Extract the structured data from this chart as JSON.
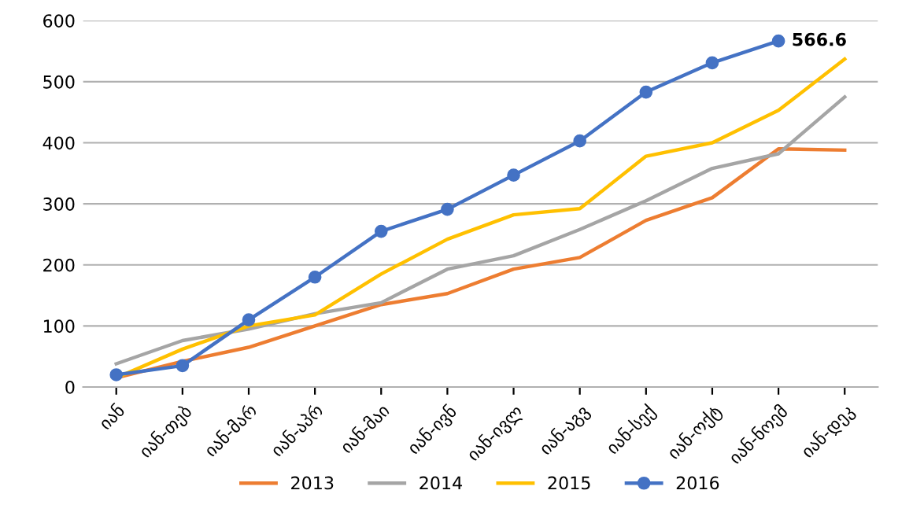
{
  "chart_data": {
    "type": "line",
    "categories": [
      "იან",
      "იან-თებ",
      "იან-მარ",
      "იან-აპრ",
      "იან-მაი",
      "იან-ივნ",
      "იან-ივლ",
      "იან-აგვ",
      "იან-სექ",
      "იან-ოქტ",
      "იან-ნოემ",
      "იან-დეკ"
    ],
    "series": [
      {
        "name": "2013",
        "color": "#ed7d31",
        "marker": "none",
        "values": [
          15,
          42,
          65,
          100,
          135,
          153,
          193,
          212,
          273,
          310,
          390,
          388
        ]
      },
      {
        "name": "2014",
        "color": "#a5a5a5",
        "marker": "none",
        "values": [
          38,
          76,
          95,
          120,
          138,
          193,
          215,
          258,
          305,
          358,
          382,
          475
        ]
      },
      {
        "name": "2015",
        "color": "#ffc000",
        "marker": "none",
        "values": [
          15,
          62,
          100,
          118,
          185,
          242,
          282,
          292,
          378,
          400,
          453,
          537
        ]
      },
      {
        "name": "2016",
        "color": "#4472c4",
        "marker": "circle",
        "values": [
          20,
          35,
          110,
          180,
          255,
          291,
          347,
          403,
          483,
          531,
          566.6,
          null
        ]
      }
    ],
    "ylim": [
      0,
      600
    ],
    "yticks": [
      0,
      100,
      200,
      300,
      400,
      500,
      600
    ],
    "grid": "y",
    "legend": "bottom",
    "line_style": "solid",
    "annotations": [
      {
        "text": "566.6",
        "x": "იან-ნოემ",
        "y": 566.6
      }
    ]
  }
}
